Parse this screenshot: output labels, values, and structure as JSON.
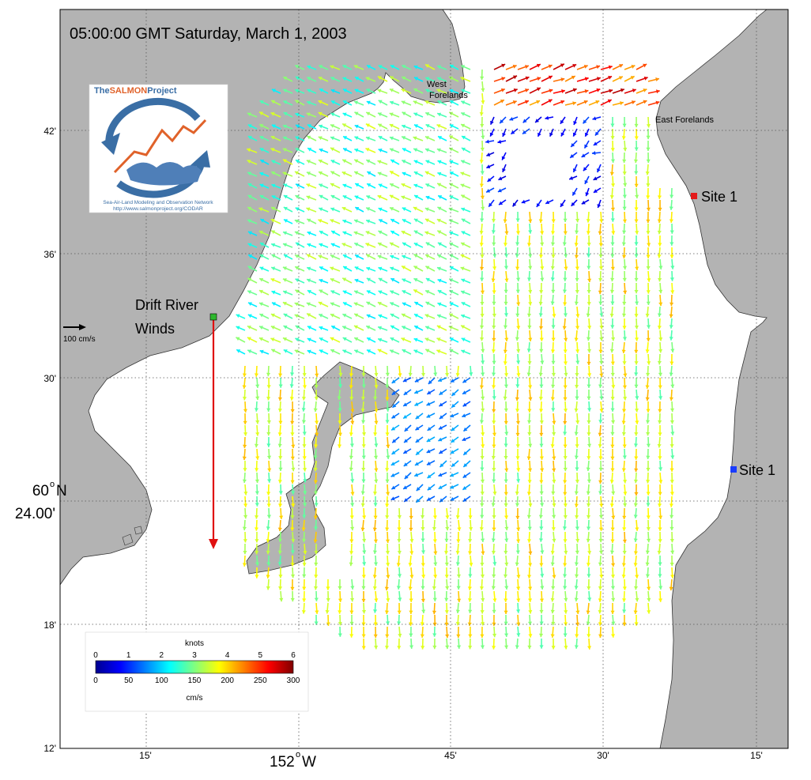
{
  "title": "05:00:00 GMT Saturday, March 1, 2003",
  "logo": {
    "name_prefix": "The",
    "name_highlight": "SALMON",
    "name_suffix": "Project",
    "tagline": "Sea-Air-Land Modeling and Observation Network",
    "url": "http://www.salmonproject.org/CODAR"
  },
  "place_labels": {
    "west_forelands_line1": "West",
    "west_forelands_line2": "Forelands",
    "east_forelands": "East Forelands"
  },
  "sites": [
    {
      "label": "Site 1",
      "color": "#e41a1a"
    },
    {
      "label": "Site 1",
      "color": "#1a3cff"
    }
  ],
  "wind_station": {
    "label_line1": "Drift River",
    "label_line2": "Winds",
    "marker_color": "#2db82d",
    "arrow_color": "#e01010"
  },
  "scale_arrow_label": "100 cm/s",
  "lat_ticks": [
    "42'",
    "36'",
    "30'",
    "18'",
    "12'"
  ],
  "lat_major": {
    "degree": "60",
    "suffix": "N",
    "minutes": "24.00'"
  },
  "lon_ticks": [
    "15'",
    "45'",
    "30'",
    "15'"
  ],
  "lon_major": {
    "degree": "152",
    "suffix": "W"
  },
  "colorbar": {
    "top_unit": "knots",
    "bottom_unit": "cm/s",
    "knots_ticks": [
      "0",
      "1",
      "2",
      "3",
      "4",
      "5",
      "6"
    ],
    "cms_ticks": [
      "0",
      "50",
      "100",
      "150",
      "200",
      "250",
      "300"
    ],
    "colormap": [
      "#00008f",
      "#0000ff",
      "#00ffff",
      "#ffff00",
      "#ff0000",
      "#800000"
    ]
  },
  "colors": {
    "land": "#b3b3b3",
    "water": "#ffffff",
    "grid": "#555555"
  }
}
